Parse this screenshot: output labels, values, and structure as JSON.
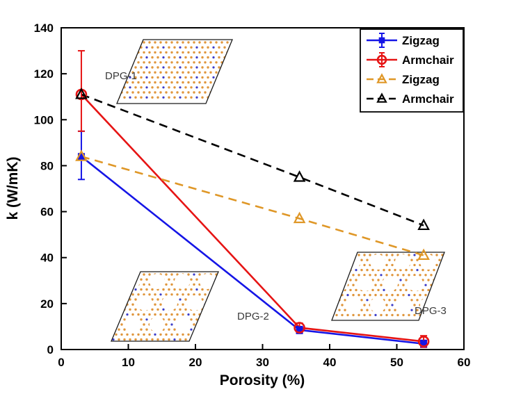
{
  "chart_data": {
    "type": "line",
    "title": "",
    "xlabel": "Porosity (%)",
    "ylabel": "k (W/mK)",
    "xlim": [
      0,
      60
    ],
    "ylim": [
      0,
      140
    ],
    "xticks": [
      0,
      10,
      20,
      30,
      40,
      50,
      60
    ],
    "yticks": [
      0,
      20,
      40,
      60,
      80,
      100,
      120,
      140
    ],
    "grid": false,
    "legend_position": "top-right",
    "series": [
      {
        "name": "Zigzag",
        "line": "solid",
        "marker": "square",
        "color": "#1515e6",
        "x": [
          3,
          35.5,
          54
        ],
        "y": [
          84,
          8.5,
          2.5
        ],
        "errorbars": true,
        "yerr_low": [
          10,
          1.5,
          1.5
        ],
        "yerr_high": [
          11,
          1.5,
          1.5
        ]
      },
      {
        "name": "Armchair",
        "line": "solid",
        "marker": "circle",
        "color": "#e61414",
        "x": [
          3,
          35.5,
          54
        ],
        "y": [
          111,
          9.5,
          3.5
        ],
        "errorbars": true,
        "yerr_low": [
          16,
          2,
          2.5
        ],
        "yerr_high": [
          19,
          2,
          2.5
        ]
      },
      {
        "name": "Zigzag",
        "line": "dashed",
        "marker": "triangle",
        "color": "#df9727",
        "x": [
          3,
          35.5,
          54
        ],
        "y": [
          84,
          57,
          41
        ],
        "errorbars": false
      },
      {
        "name": "Armchair",
        "line": "dashed",
        "marker": "triangle",
        "color": "#000000",
        "x": [
          3,
          35.5,
          54
        ],
        "y": [
          111,
          75,
          54
        ],
        "errorbars": false
      }
    ],
    "insets": [
      {
        "label": "DPG-1",
        "type": "structure",
        "holes": false,
        "atom_colors": [
          "#e0963c",
          "#3c3cc8"
        ]
      },
      {
        "label": "DPG-2",
        "type": "structure",
        "holes": true,
        "atom_colors": [
          "#e0963c",
          "#3c3cc8"
        ]
      },
      {
        "label": "DPG-3",
        "type": "structure",
        "holes": true,
        "atom_colors": [
          "#e0963c",
          "#3c3cc8"
        ]
      }
    ]
  }
}
